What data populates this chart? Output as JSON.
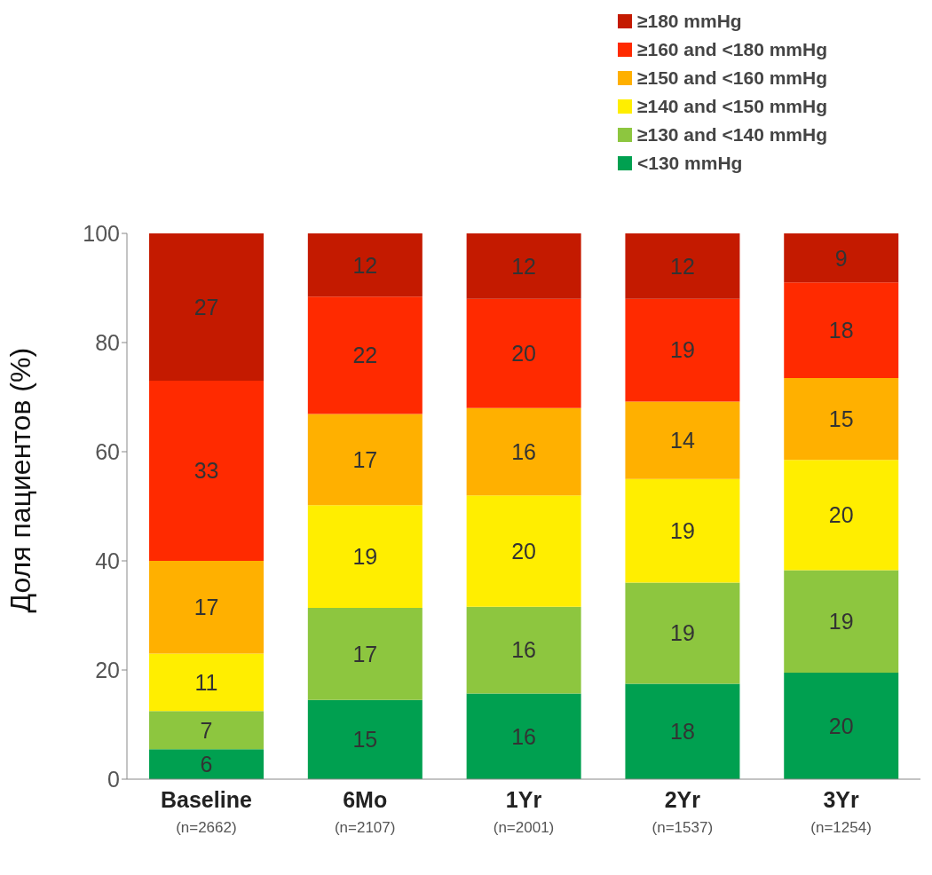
{
  "chart_data": {
    "type": "bar",
    "stacked": true,
    "ylabel": "Доля пациентов (%)",
    "categories": [
      "Baseline\n(n=2662)",
      "6Mo\n(n=2107)",
      "1Yr\n(n=2001)",
      "2Yr\n(n=1537)",
      "3Yr\n(n=1254)"
    ],
    "series": [
      {
        "name": "<130 mmHg",
        "color": "#00a050",
        "values": [
          5.5,
          14.5,
          15.7,
          17.5,
          19.5
        ],
        "value_labels": [
          "6",
          "15",
          "16",
          "18",
          "20"
        ]
      },
      {
        "name": "≥130 and <140 mmHg",
        "color": "#8dc63f",
        "values": [
          7,
          16.9,
          15.9,
          18.5,
          18.8
        ],
        "value_labels": [
          "7",
          "17",
          "16",
          "19",
          "19"
        ]
      },
      {
        "name": "≥140 and <150 mmHg",
        "color": "#ffee00",
        "values": [
          10.5,
          18.8,
          20.4,
          19,
          20.2
        ],
        "value_labels": [
          "11",
          "19",
          "20",
          "19",
          "20"
        ]
      },
      {
        "name": "≥150 and <160 mmHg",
        "color": "#ffb000",
        "values": [
          17,
          16.7,
          16,
          14.2,
          15
        ],
        "value_labels": [
          "17",
          "17",
          "16",
          "14",
          "15"
        ]
      },
      {
        "name": "≥160 and <180 mmHg",
        "color": "#ff2a00",
        "values": [
          33,
          21.5,
          20,
          18.8,
          17.5
        ],
        "value_labels": [
          "33",
          "22",
          "20",
          "19",
          "18"
        ]
      },
      {
        "name": "≥180 mmHg",
        "color": "#c41a00",
        "values": [
          27,
          11.6,
          12,
          12,
          9
        ],
        "value_labels": [
          "27",
          "12",
          "12",
          "12",
          "9"
        ]
      }
    ],
    "ylim": [
      0,
      100
    ],
    "yticks": [
      0,
      20,
      40,
      60,
      80,
      100
    ],
    "grid": false,
    "legend": "top right"
  }
}
